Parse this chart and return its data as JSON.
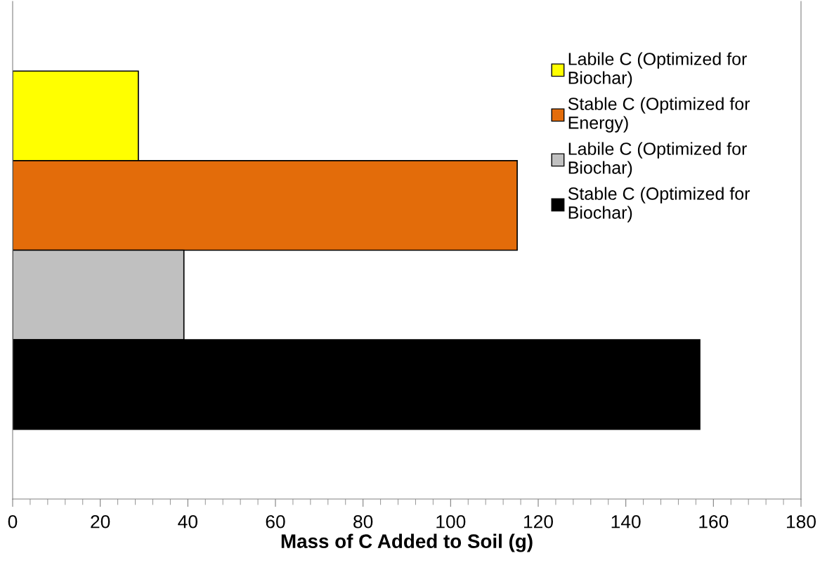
{
  "chart_data": {
    "type": "bar",
    "orientation": "horizontal",
    "xlabel": "Mass of C Added to Soil (g)",
    "categories": [
      null
    ],
    "series": [
      {
        "name": "Labile C (Optimized for Biochar)",
        "color": "#ffff00",
        "values": [
          28.7
        ]
      },
      {
        "name": "Stable C (Optimized for Energy)",
        "color": "#e36c0a",
        "values": [
          115.2
        ]
      },
      {
        "name": "Labile C (Optimized for Biochar)",
        "color": "#c0c0c0",
        "values": [
          39.1
        ]
      },
      {
        "name": "Stable C (Optimized for Biochar)",
        "color": "#000000",
        "values": [
          156.9
        ]
      }
    ],
    "xlim": [
      0,
      180
    ],
    "xticks": [
      0,
      20,
      40,
      60,
      80,
      100,
      120,
      140,
      160,
      180
    ],
    "tick_labels": "x",
    "grid": false,
    "legend": "top right"
  }
}
